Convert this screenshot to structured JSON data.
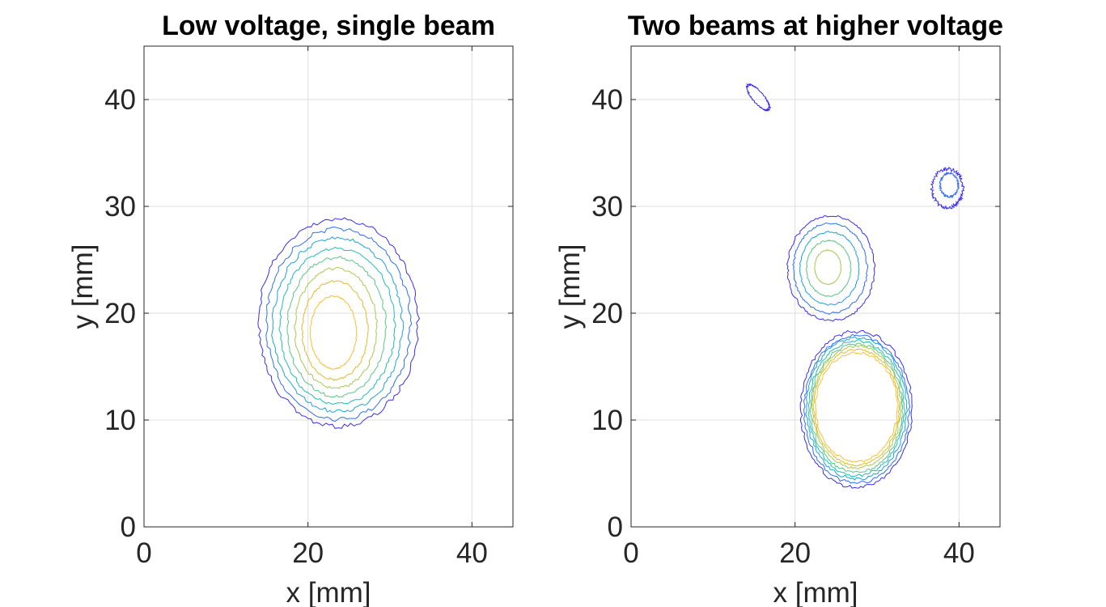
{
  "colors": {
    "background": "#ffffff",
    "axes": "#262626",
    "grid": "#dfdfdf",
    "contour_colormap": [
      "#3a2df2",
      "#2f6ff0",
      "#1fa2d8",
      "#1fbcb6",
      "#5cc685",
      "#a8c94f",
      "#e0ba2f",
      "#f6c032"
    ]
  },
  "chart_data": [
    {
      "type": "contour",
      "title": "Low voltage, single beam",
      "xlabel": "x [mm]",
      "ylabel": "y [mm]",
      "xlim": [
        0,
        45
      ],
      "ylim": [
        0,
        45
      ],
      "xticks": [
        0,
        20,
        40
      ],
      "yticks": [
        0,
        10,
        20,
        30,
        40
      ],
      "xtick_labels": [
        "0",
        "20",
        "40"
      ],
      "ytick_labels": [
        "0",
        "10",
        "20",
        "30",
        "40"
      ],
      "grid": true,
      "box": true,
      "contour_levels": 8,
      "features": [
        {
          "kind": "beam",
          "center": [
            23.5,
            19
          ],
          "radius": [
            9.5,
            9.5
          ],
          "levels": [
            {
              "rx": 9.7,
              "ry": 9.7,
              "cx": 23.7,
              "cy": 19.1
            },
            {
              "rx": 8.8,
              "ry": 8.9,
              "cx": 23.7,
              "cy": 19.0
            },
            {
              "rx": 7.9,
              "ry": 8.1,
              "cx": 23.6,
              "cy": 18.9
            },
            {
              "rx": 7.0,
              "ry": 7.3,
              "cx": 23.6,
              "cy": 18.8
            },
            {
              "rx": 6.0,
              "ry": 6.5,
              "cx": 23.5,
              "cy": 18.7
            },
            {
              "rx": 5.0,
              "ry": 5.6,
              "cx": 23.4,
              "cy": 18.6
            },
            {
              "rx": 4.0,
              "ry": 4.6,
              "cx": 23.3,
              "cy": 18.4
            },
            {
              "rx": 2.8,
              "ry": 3.4,
              "cx": 23.1,
              "cy": 18.2
            }
          ]
        }
      ]
    },
    {
      "type": "contour",
      "title": "Two beams at higher voltage",
      "xlabel": "x [mm]",
      "ylabel": "y [mm]",
      "xlim": [
        0,
        45
      ],
      "ylim": [
        0,
        45
      ],
      "xticks": [
        0,
        20,
        40
      ],
      "yticks": [
        0,
        10,
        20,
        30,
        40
      ],
      "xtick_labels": [
        "0",
        "20",
        "40"
      ],
      "ytick_labels": [
        "0",
        "10",
        "20",
        "30",
        "40"
      ],
      "grid": true,
      "box": true,
      "contour_levels": 8,
      "features": [
        {
          "kind": "beam",
          "center": [
            27.5,
            11
          ],
          "levels": [
            {
              "rx": 6.8,
              "ry": 7.3,
              "cx": 27.5,
              "cy": 11.0
            },
            {
              "rx": 6.4,
              "ry": 6.9,
              "cx": 27.5,
              "cy": 11.0
            },
            {
              "rx": 6.1,
              "ry": 6.6,
              "cx": 27.5,
              "cy": 11.1
            },
            {
              "rx": 5.8,
              "ry": 6.3,
              "cx": 27.5,
              "cy": 11.1
            },
            {
              "rx": 5.6,
              "ry": 6.0,
              "cx": 27.5,
              "cy": 11.1
            },
            {
              "rx": 5.4,
              "ry": 5.7,
              "cx": 27.5,
              "cy": 11.2
            },
            {
              "rx": 5.2,
              "ry": 5.4,
              "cx": 27.5,
              "cy": 11.2
            },
            {
              "rx": 5.0,
              "ry": 5.1,
              "cx": 27.5,
              "cy": 11.2
            }
          ]
        },
        {
          "kind": "beam",
          "center": [
            24,
            24
          ],
          "levels": [
            {
              "rx": 5.3,
              "ry": 4.9,
              "cx": 24.4,
              "cy": 24.2
            },
            {
              "rx": 4.5,
              "ry": 4.2,
              "cx": 24.3,
              "cy": 24.2
            },
            {
              "rx": 3.6,
              "ry": 3.4,
              "cx": 24.2,
              "cy": 24.2
            },
            {
              "rx": 2.7,
              "ry": 2.6,
              "cx": 24.1,
              "cy": 24.2
            },
            {
              "rx": 1.6,
              "ry": 1.6,
              "cx": 24.0,
              "cy": 24.3
            }
          ]
        },
        {
          "kind": "spot",
          "center": [
            15.5,
            40.2
          ],
          "levels": [
            {
              "rx": 1.7,
              "ry": 0.6,
              "cx": 15.5,
              "cy": 40.2,
              "rot": -40
            }
          ]
        },
        {
          "kind": "spot",
          "center": [
            38.5,
            32
          ],
          "levels": [
            {
              "rx": 1.9,
              "ry": 1.8,
              "cx": 38.6,
              "cy": 31.7
            },
            {
              "rx": 1.1,
              "ry": 1.1,
              "cx": 38.8,
              "cy": 32.0
            }
          ]
        }
      ]
    }
  ]
}
